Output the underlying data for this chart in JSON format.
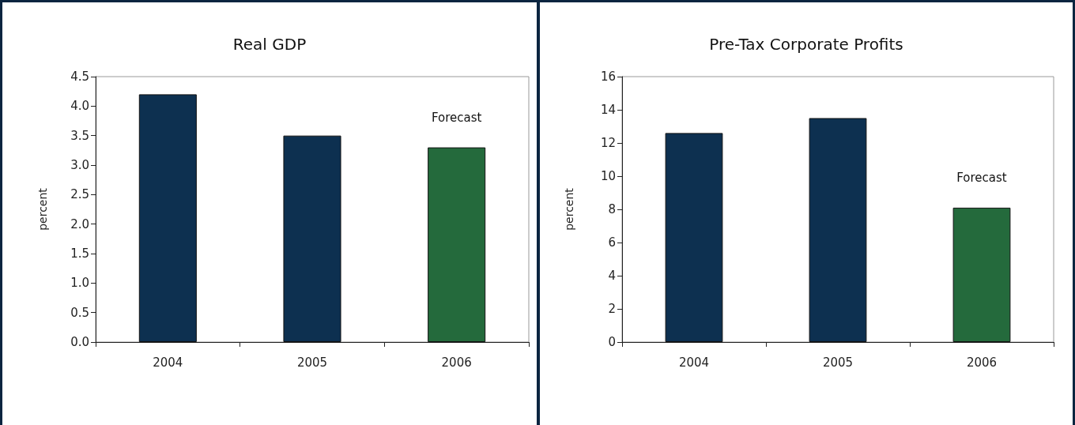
{
  "chart_data": [
    {
      "type": "bar",
      "title": "Real GDP",
      "ylabel": "percent",
      "categories": [
        "2004",
        "2005",
        "2006"
      ],
      "values": [
        4.2,
        3.5,
        3.3
      ],
      "colors": [
        "#0d3050",
        "#0d3050",
        "#246a3c"
      ],
      "ylim": [
        0,
        4.5
      ],
      "yticks": [
        {
          "value": 0,
          "label": "0.0"
        },
        {
          "value": 0.5,
          "label": "0.5"
        },
        {
          "value": 1,
          "label": "1.0"
        },
        {
          "value": 1.5,
          "label": "1.5"
        },
        {
          "value": 2,
          "label": "2.0"
        },
        {
          "value": 2.5,
          "label": "2.5"
        },
        {
          "value": 3,
          "label": "3.0"
        },
        {
          "value": 3.5,
          "label": "3.5"
        },
        {
          "value": 4,
          "label": "4.0"
        },
        {
          "value": 4.5,
          "label": "4.5"
        }
      ],
      "grid": false,
      "annotations": [
        "Forecast"
      ]
    },
    {
      "type": "bar",
      "title": "Pre-Tax Corporate Profits",
      "ylabel": "percent",
      "categories": [
        "2004",
        "2005",
        "2006"
      ],
      "values": [
        12.6,
        13.5,
        8.1
      ],
      "colors": [
        "#0d3050",
        "#0d3050",
        "#246a3c"
      ],
      "ylim": [
        0,
        16
      ],
      "yticks": [
        0,
        2,
        4,
        6,
        8,
        10,
        12,
        14,
        16
      ],
      "grid": false,
      "annotations": [
        "Forecast"
      ]
    }
  ]
}
